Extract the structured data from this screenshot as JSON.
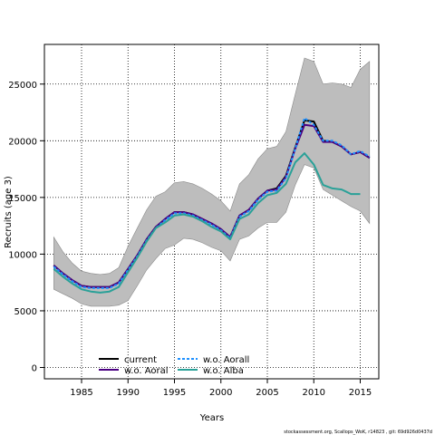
{
  "chart_data": {
    "type": "line",
    "xlabel": "Years",
    "ylabel": "Recruits (age 3)",
    "xlim": [
      1981,
      2017
    ],
    "ylim": [
      -1000,
      28500
    ],
    "x_ticks": [
      1985,
      1990,
      1995,
      2000,
      2005,
      2010,
      2015
    ],
    "y_ticks": [
      0,
      5000,
      10000,
      15000,
      20000,
      25000
    ],
    "grid": true,
    "legend_position": "bottom-left",
    "confidence_band": {
      "x": [
        1982,
        1983,
        1984,
        1985,
        1986,
        1987,
        1988,
        1989,
        1990,
        1991,
        1992,
        1993,
        1994,
        1995,
        1996,
        1997,
        1998,
        1999,
        2000,
        2001,
        2002,
        2003,
        2004,
        2005,
        2006,
        2007,
        2008,
        2009,
        2010,
        2011,
        2012,
        2013,
        2014,
        2015,
        2016
      ],
      "upper": [
        11500,
        10200,
        9200,
        8500,
        8300,
        8200,
        8300,
        8800,
        10700,
        12300,
        13900,
        15100,
        15500,
        16300,
        16400,
        16200,
        15800,
        15300,
        14700,
        13800,
        16200,
        17000,
        18400,
        19300,
        19500,
        20800,
        24100,
        27300,
        27000,
        25000,
        25100,
        25000,
        24700,
        26300,
        27000
      ],
      "lower": [
        6900,
        6500,
        6100,
        5600,
        5400,
        5400,
        5400,
        5500,
        5900,
        7200,
        8600,
        9600,
        10500,
        10800,
        11400,
        11300,
        11000,
        10600,
        10300,
        9400,
        11300,
        11600,
        12300,
        12800,
        12800,
        13700,
        16100,
        17900,
        17600,
        15700,
        15200,
        14700,
        14200,
        13800,
        12700
      ]
    },
    "series": [
      {
        "name": "current",
        "color": "#000000",
        "dash": "solid",
        "values": [
          9000,
          8300,
          7700,
          7200,
          7100,
          7100,
          7100,
          7500,
          8700,
          9900,
          11300,
          12400,
          13100,
          13700,
          13700,
          13500,
          13100,
          12700,
          12200,
          11500,
          13400,
          13900,
          14900,
          15600,
          15800,
          16900,
          19400,
          21800,
          21700,
          20000,
          19900,
          19500,
          18800,
          19000,
          18500
        ]
      },
      {
        "name": "w.o. Aoral",
        "color": "#4b0082",
        "dash": "solid",
        "values": [
          9000,
          8300,
          7700,
          7200,
          7100,
          7100,
          7100,
          7500,
          8700,
          9900,
          11300,
          12400,
          13100,
          13700,
          13700,
          13500,
          13100,
          12700,
          12200,
          11500,
          13400,
          13900,
          14900,
          15600,
          15700,
          16800,
          19300,
          21400,
          21300,
          19900,
          19900,
          19500,
          18800,
          19000,
          18500
        ]
      },
      {
        "name": "w.o. Aorall",
        "color": "#1e90ff",
        "dash": "dashed",
        "values": [
          8900,
          8200,
          7600,
          7100,
          7000,
          7000,
          7000,
          7400,
          8600,
          9800,
          11200,
          12300,
          13000,
          13600,
          13600,
          13400,
          13000,
          12600,
          12100,
          11400,
          13300,
          13800,
          14800,
          15500,
          15600,
          16700,
          19300,
          22000,
          21400,
          20000,
          20000,
          19600,
          18800,
          19100,
          18600
        ]
      },
      {
        "name": "w.o. Alba",
        "color": "#2aa198",
        "dash": "solid",
        "values": [
          8700,
          8000,
          7400,
          6900,
          6700,
          6600,
          6700,
          7100,
          8400,
          9700,
          11100,
          12300,
          12800,
          13400,
          13500,
          13300,
          12900,
          12400,
          12000,
          11300,
          13100,
          13500,
          14500,
          15200,
          15400,
          16200,
          18100,
          18900,
          17900,
          16100,
          15800,
          15700,
          15300,
          15300,
          null
        ]
      }
    ]
  },
  "footnote": "stockassessment.org, Scallops_WoK, r14823 , git: 69d926d0437d"
}
